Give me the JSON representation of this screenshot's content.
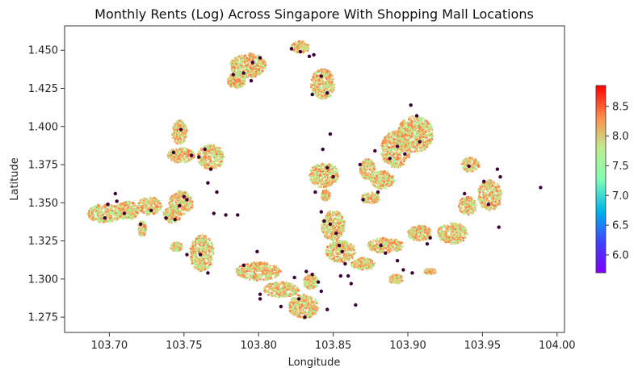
{
  "chart_data": {
    "type": "scatter",
    "title": "Monthly Rents (Log) Across Singapore With Shopping Mall Locations",
    "xlabel": "Longitude",
    "ylabel": "Latitude",
    "xlim": [
      103.67,
      104.005
    ],
    "ylim": [
      1.265,
      1.466
    ],
    "xticks": [
      "103.70",
      "103.75",
      "103.80",
      "103.85",
      "103.90",
      "103.95",
      "104.00"
    ],
    "yticks": [
      "1.275",
      "1.300",
      "1.325",
      "1.350",
      "1.375",
      "1.400",
      "1.425",
      "1.450"
    ],
    "grid": false,
    "colorbar": {
      "colormap": "rainbow",
      "range": [
        5.7,
        8.85
      ],
      "ticks": [
        "6.0",
        "6.5",
        "7.0",
        "7.5",
        "8.0",
        "8.5"
      ]
    },
    "rent_clusters": [
      {
        "lon": 103.697,
        "lat": 1.343,
        "rlon": 0.012,
        "rlat": 0.006
      },
      {
        "lon": 103.712,
        "lat": 1.345,
        "rlon": 0.008,
        "rlat": 0.006
      },
      {
        "lon": 103.727,
        "lat": 1.348,
        "rlon": 0.008,
        "rlat": 0.006
      },
      {
        "lon": 103.722,
        "lat": 1.333,
        "rlon": 0.003,
        "rlat": 0.005
      },
      {
        "lon": 103.748,
        "lat": 1.35,
        "rlon": 0.008,
        "rlat": 0.008
      },
      {
        "lon": 103.742,
        "lat": 1.342,
        "rlon": 0.006,
        "rlat": 0.005
      },
      {
        "lon": 103.745,
        "lat": 1.321,
        "rlon": 0.004,
        "rlat": 0.003
      },
      {
        "lon": 103.748,
        "lat": 1.381,
        "rlon": 0.009,
        "rlat": 0.005
      },
      {
        "lon": 103.747,
        "lat": 1.396,
        "rlon": 0.005,
        "rlat": 0.008
      },
      {
        "lon": 103.768,
        "lat": 1.38,
        "rlon": 0.009,
        "rlat": 0.008
      },
      {
        "lon": 103.762,
        "lat": 1.317,
        "rlon": 0.008,
        "rlat": 0.012
      },
      {
        "lon": 103.793,
        "lat": 1.44,
        "rlon": 0.012,
        "rlat": 0.008
      },
      {
        "lon": 103.785,
        "lat": 1.43,
        "rlon": 0.006,
        "rlat": 0.005
      },
      {
        "lon": 103.828,
        "lat": 1.452,
        "rlon": 0.006,
        "rlat": 0.004
      },
      {
        "lon": 103.843,
        "lat": 1.428,
        "rlon": 0.008,
        "rlat": 0.01
      },
      {
        "lon": 103.844,
        "lat": 1.368,
        "rlon": 0.01,
        "rlat": 0.008
      },
      {
        "lon": 103.845,
        "lat": 1.355,
        "rlon": 0.003,
        "rlat": 0.004
      },
      {
        "lon": 103.85,
        "lat": 1.335,
        "rlon": 0.008,
        "rlat": 0.01
      },
      {
        "lon": 103.855,
        "lat": 1.318,
        "rlon": 0.01,
        "rlat": 0.007
      },
      {
        "lon": 103.8,
        "lat": 1.305,
        "rlon": 0.015,
        "rlat": 0.006
      },
      {
        "lon": 103.815,
        "lat": 1.293,
        "rlon": 0.012,
        "rlat": 0.005
      },
      {
        "lon": 103.83,
        "lat": 1.282,
        "rlon": 0.01,
        "rlat": 0.008
      },
      {
        "lon": 103.835,
        "lat": 1.298,
        "rlon": 0.005,
        "rlat": 0.005
      },
      {
        "lon": 103.873,
        "lat": 1.372,
        "rlon": 0.005,
        "rlat": 0.007
      },
      {
        "lon": 103.883,
        "lat": 1.365,
        "rlon": 0.008,
        "rlat": 0.006
      },
      {
        "lon": 103.875,
        "lat": 1.353,
        "rlon": 0.006,
        "rlat": 0.004
      },
      {
        "lon": 103.892,
        "lat": 1.385,
        "rlon": 0.01,
        "rlat": 0.012
      },
      {
        "lon": 103.905,
        "lat": 1.395,
        "rlon": 0.012,
        "rlat": 0.012
      },
      {
        "lon": 103.885,
        "lat": 1.322,
        "rlon": 0.012,
        "rlat": 0.005
      },
      {
        "lon": 103.87,
        "lat": 1.31,
        "rlon": 0.008,
        "rlat": 0.004
      },
      {
        "lon": 103.908,
        "lat": 1.33,
        "rlon": 0.008,
        "rlat": 0.005
      },
      {
        "lon": 103.93,
        "lat": 1.33,
        "rlon": 0.01,
        "rlat": 0.007
      },
      {
        "lon": 103.94,
        "lat": 1.348,
        "rlon": 0.006,
        "rlat": 0.006
      },
      {
        "lon": 103.955,
        "lat": 1.355,
        "rlon": 0.008,
        "rlat": 0.01
      },
      {
        "lon": 103.942,
        "lat": 1.375,
        "rlon": 0.006,
        "rlat": 0.005
      },
      {
        "lon": 103.915,
        "lat": 1.305,
        "rlon": 0.004,
        "rlat": 0.002
      },
      {
        "lon": 103.892,
        "lat": 1.3,
        "rlon": 0.005,
        "rlat": 0.003
      }
    ],
    "mall_locations": [
      [
        103.699,
        1.349
      ],
      [
        103.704,
        1.356
      ],
      [
        103.705,
        1.351
      ],
      [
        103.697,
        1.34
      ],
      [
        103.71,
        1.343
      ],
      [
        103.721,
        1.336
      ],
      [
        103.728,
        1.345
      ],
      [
        103.738,
        1.34
      ],
      [
        103.744,
        1.339
      ],
      [
        103.747,
        1.348
      ],
      [
        103.75,
        1.354
      ],
      [
        103.752,
        1.352
      ],
      [
        103.743,
        1.383
      ],
      [
        103.748,
        1.398
      ],
      [
        103.755,
        1.381
      ],
      [
        103.76,
        1.38
      ],
      [
        103.764,
        1.385
      ],
      [
        103.766,
        1.363
      ],
      [
        103.768,
        1.372
      ],
      [
        103.772,
        1.357
      ],
      [
        103.752,
        1.316
      ],
      [
        103.761,
        1.316
      ],
      [
        103.766,
        1.304
      ],
      [
        103.77,
        1.343
      ],
      [
        103.778,
        1.342
      ],
      [
        103.786,
        1.342
      ],
      [
        103.783,
        1.434
      ],
      [
        103.79,
        1.435
      ],
      [
        103.795,
        1.43
      ],
      [
        103.796,
        1.442
      ],
      [
        103.801,
        1.445
      ],
      [
        103.822,
        1.451
      ],
      [
        103.828,
        1.449
      ],
      [
        103.834,
        1.446
      ],
      [
        103.837,
        1.447
      ],
      [
        103.842,
        1.433
      ],
      [
        103.846,
        1.422
      ],
      [
        103.836,
        1.421
      ],
      [
        103.79,
        1.309
      ],
      [
        103.799,
        1.318
      ],
      [
        103.801,
        1.29
      ],
      [
        103.801,
        1.287
      ],
      [
        103.815,
        1.282
      ],
      [
        103.824,
        1.301
      ],
      [
        103.827,
        1.287
      ],
      [
        103.831,
        1.275
      ],
      [
        103.832,
        1.305
      ],
      [
        103.836,
        1.303
      ],
      [
        103.84,
        1.298
      ],
      [
        103.842,
        1.292
      ],
      [
        103.846,
        1.28
      ],
      [
        103.848,
        1.395
      ],
      [
        103.843,
        1.385
      ],
      [
        103.846,
        1.373
      ],
      [
        103.85,
        1.367
      ],
      [
        103.838,
        1.357
      ],
      [
        103.842,
        1.344
      ],
      [
        103.844,
        1.338
      ],
      [
        103.848,
        1.336
      ],
      [
        103.852,
        1.33
      ],
      [
        103.854,
        1.322
      ],
      [
        103.856,
        1.318
      ],
      [
        103.858,
        1.31
      ],
      [
        103.86,
        1.302
      ],
      [
        103.862,
        1.297
      ],
      [
        103.855,
        1.302
      ],
      [
        103.865,
        1.283
      ],
      [
        103.868,
        1.375
      ],
      [
        103.87,
        1.352
      ],
      [
        103.878,
        1.384
      ],
      [
        103.88,
        1.357
      ],
      [
        103.888,
        1.379
      ],
      [
        103.893,
        1.387
      ],
      [
        103.898,
        1.382
      ],
      [
        103.902,
        1.414
      ],
      [
        103.906,
        1.407
      ],
      [
        103.908,
        1.39
      ],
      [
        103.882,
        1.322
      ],
      [
        103.885,
        1.317
      ],
      [
        103.893,
        1.312
      ],
      [
        103.897,
        1.306
      ],
      [
        103.903,
        1.304
      ],
      [
        103.913,
        1.323
      ],
      [
        103.938,
        1.356
      ],
      [
        103.941,
        1.374
      ],
      [
        103.951,
        1.364
      ],
      [
        103.954,
        1.349
      ],
      [
        103.96,
        1.372
      ],
      [
        103.962,
        1.367
      ],
      [
        103.961,
        1.334
      ],
      [
        103.989,
        1.36
      ],
      [
        103.915,
        1.327
      ]
    ]
  }
}
